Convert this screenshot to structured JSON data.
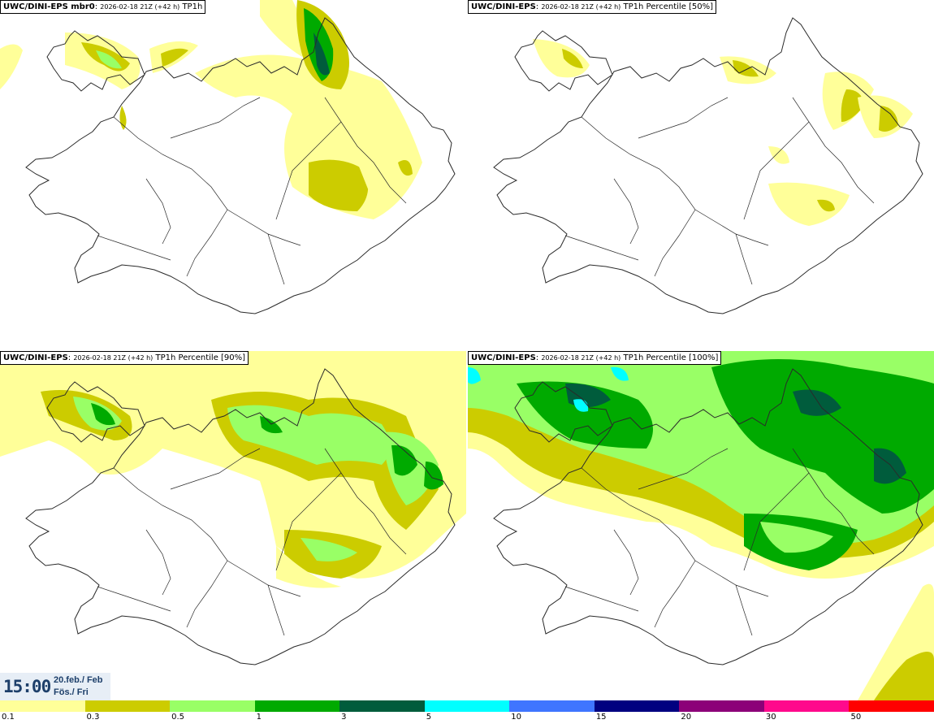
{
  "panels": [
    {
      "model": "UWC/DINI-EPS mbr0",
      "run": "2026-02-18 21Z (+42 h)",
      "field": "TP1h"
    },
    {
      "model": "UWC/DINI-EPS",
      "run": "2026-02-18 21Z (+42 h)",
      "field": "TP1h Percentile [50%]"
    },
    {
      "model": "UWC/DINI-EPS",
      "run": "2026-02-18 21Z (+42 h)",
      "field": "TP1h Percentile [90%]"
    },
    {
      "model": "UWC/DINI-EPS",
      "run": "2026-02-18 21Z (+42 h)",
      "field": "TP1h Percentile [100%]"
    }
  ],
  "valid_time": {
    "time": "15:00",
    "date": "20.feb./ Feb",
    "day": "Fös./ Fri"
  },
  "legend": {
    "ticks": [
      "0.1",
      "0.3",
      "0.5",
      "1",
      "3",
      "5",
      "10",
      "15",
      "20",
      "30",
      "50"
    ],
    "colors": [
      "#ffff99",
      "#cccc00",
      "#99ff66",
      "#00aa00",
      "#005c3c",
      "#00ffff",
      "#3f75ff",
      "#000080",
      "#8c0078",
      "#ff0a8c",
      "#ff0000"
    ]
  },
  "colors": {
    "level1": "#ffff99",
    "level2": "#cccc00",
    "level3": "#99ff66",
    "level4": "#00aa00",
    "level5": "#005c3c",
    "level6": "#00ffff",
    "coast": "#2a2a2a"
  }
}
